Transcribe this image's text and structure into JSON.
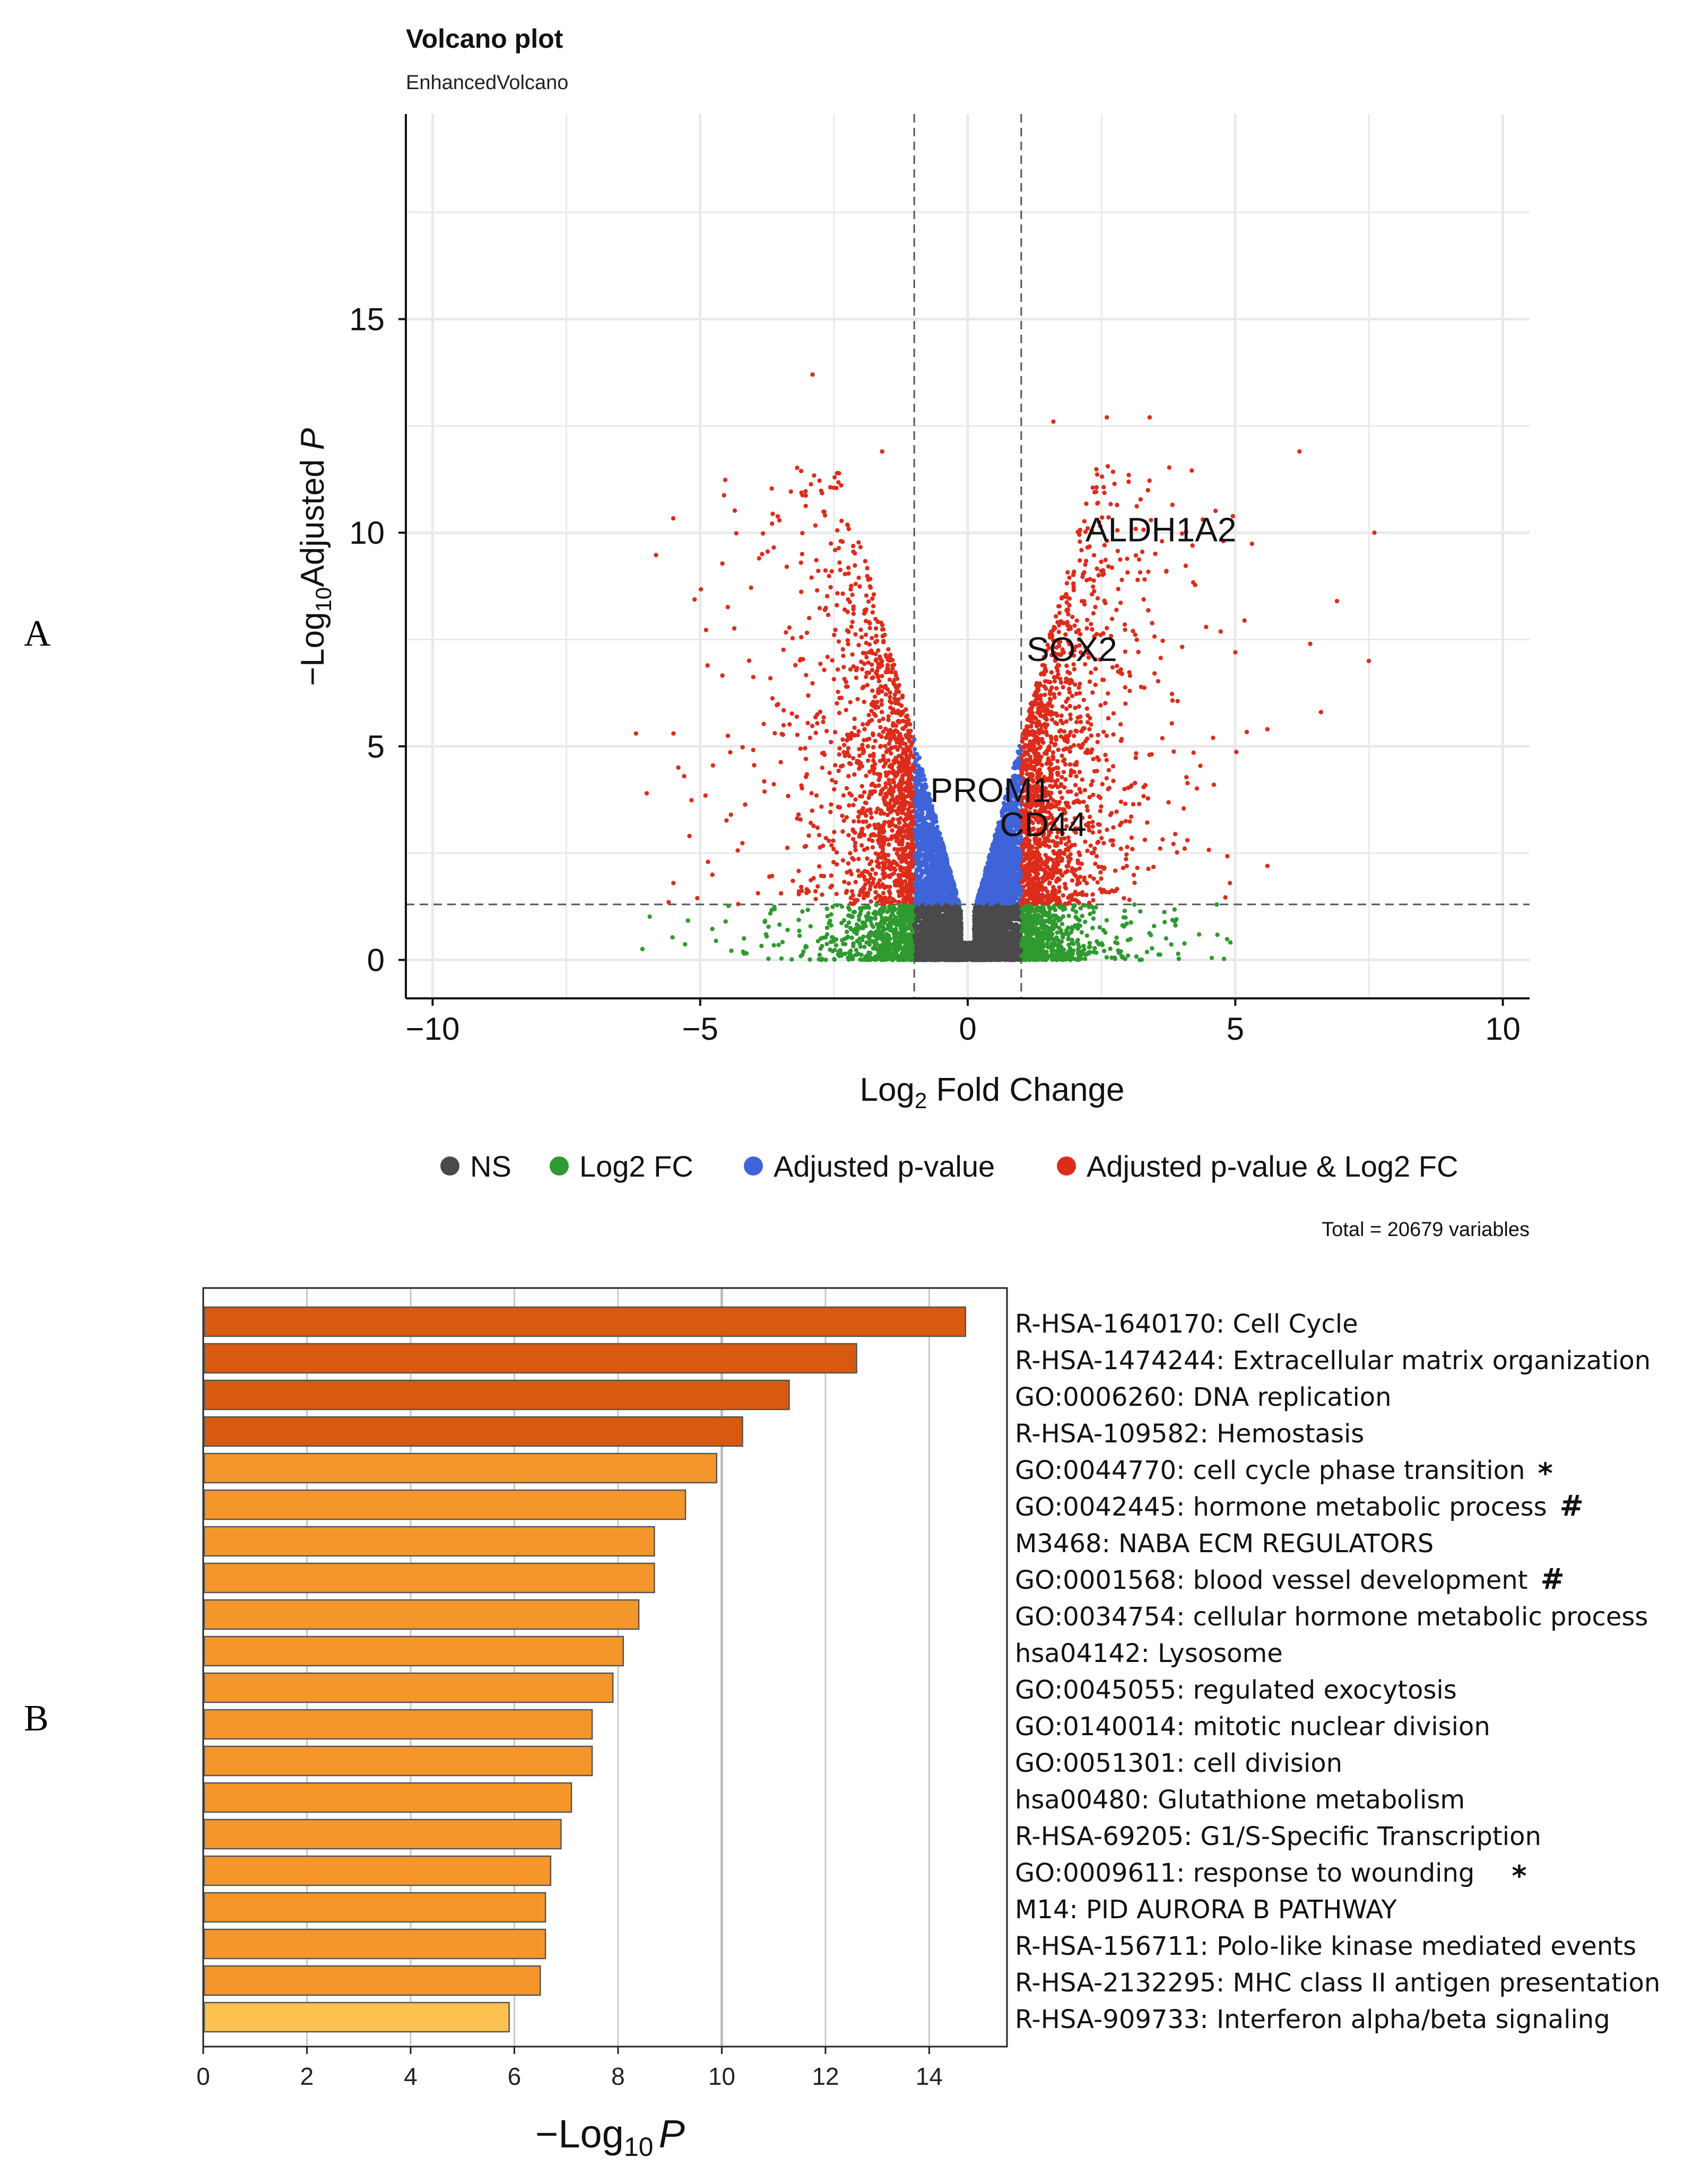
{
  "panels": {
    "a": "A",
    "b": "B"
  },
  "colors": {
    "ns": "#4a4a4a",
    "log2fc": "#2f9a2f",
    "padj": "#3f63d8",
    "both": "#dd2c1b",
    "bar_dark": "#d85a10",
    "bar_mid": "#f5962a",
    "bar_light": "#fdc24f",
    "bar_stroke": "#555555"
  },
  "chart_data": [
    {
      "type": "scatter",
      "title": "Volcano plot",
      "subtitle": "EnhancedVolcano",
      "xlabel": {
        "base": "Log",
        "sub": "2",
        "rest": " Fold Change"
      },
      "ylabel": {
        "pre": "−Log",
        "sub": "10",
        "mid": "Adjusted ",
        "italic": "P"
      },
      "xlim": [
        -10.5,
        10.5
      ],
      "ylim": [
        -0.9,
        19.8
      ],
      "xticks": [
        -10,
        -5,
        0,
        5,
        10
      ],
      "xtick_labels": [
        "−10",
        "−5",
        "0",
        "5",
        "10"
      ],
      "yticks": [
        0,
        5,
        10,
        15
      ],
      "ytick_labels": [
        "0",
        "5",
        "10",
        "15"
      ],
      "fc_cutoff": 1,
      "p_cutoff": 1.3,
      "total_points": 20679,
      "caption": "Total = 20679 variables",
      "legend": {
        "position": "bottom",
        "items": [
          {
            "key": "ns",
            "label": "NS"
          },
          {
            "key": "log2fc",
            "label": "Log2 FC"
          },
          {
            "key": "padj",
            "label": "Adjusted p-value"
          },
          {
            "key": "both",
            "label": "Adjusted p-value & Log2 FC"
          }
        ]
      },
      "gene_labels": [
        {
          "label": "ALDH1A2",
          "x": 2.2,
          "y": 9.8
        },
        {
          "label": "SOX2",
          "x": 1.1,
          "y": 7.0
        },
        {
          "label": "PROM1",
          "x": -0.7,
          "y": 3.7
        },
        {
          "label": "CD44",
          "x": 0.6,
          "y": 2.9
        }
      ]
    },
    {
      "type": "bar",
      "orientation": "horizontal",
      "xlabel": {
        "pre": "−Log",
        "sub": "10",
        "italic": "P"
      },
      "xlim": [
        0,
        15.5
      ],
      "xticks": [
        0,
        2,
        4,
        6,
        8,
        10,
        12,
        14
      ],
      "categories": [
        "R-HSA-1640170: Cell Cycle",
        "R-HSA-1474244: Extracellular matrix organization",
        "GO:0006260: DNA replication",
        "R-HSA-109582: Hemostasis",
        "GO:0044770: cell cycle phase transition",
        "GO:0042445: hormone metabolic process",
        "M3468: NABA ECM REGULATORS",
        "GO:0001568: blood vessel development",
        "GO:0034754: cellular hormone metabolic process",
        "hsa04142: Lysosome",
        "GO:0045055: regulated exocytosis",
        "GO:0140014: mitotic nuclear division",
        "GO:0051301: cell division",
        "hsa00480: Glutathione metabolism",
        "R-HSA-69205: G1/S-Specific Transcription",
        "GO:0009611: response to wounding",
        "M14: PID AURORA B PATHWAY",
        "R-HSA-156711: Polo-like kinase mediated events",
        "R-HSA-2132295: MHC class II antigen presentation",
        "R-HSA-909733: Interferon alpha/beta signaling"
      ],
      "values": [
        14.7,
        12.6,
        11.3,
        10.4,
        9.9,
        9.3,
        8.7,
        8.7,
        8.4,
        8.1,
        7.9,
        7.5,
        7.5,
        7.1,
        6.9,
        6.7,
        6.6,
        6.6,
        6.5,
        5.9
      ],
      "marks": [
        "",
        "",
        "",
        "",
        "*",
        "#",
        "",
        "#",
        "",
        "",
        "",
        "",
        "",
        "",
        "",
        "*",
        "",
        "",
        "",
        ""
      ],
      "color_groups": [
        "dark",
        "dark",
        "dark",
        "dark",
        "mid",
        "mid",
        "mid",
        "mid",
        "mid",
        "mid",
        "mid",
        "mid",
        "mid",
        "mid",
        "mid",
        "mid",
        "mid",
        "mid",
        "mid",
        "light"
      ]
    }
  ]
}
